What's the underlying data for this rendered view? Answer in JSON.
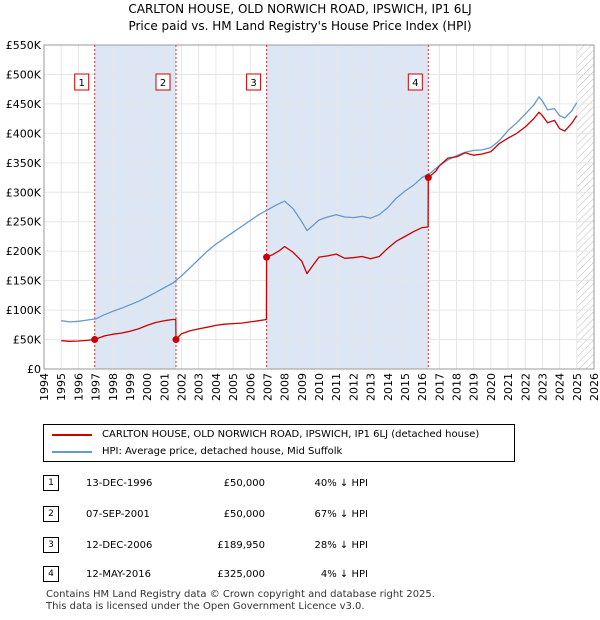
{
  "title_line1": "CARLTON HOUSE, OLD NORWICH ROAD, IPSWICH, IP1 6LJ",
  "title_line2": "Price paid vs. HM Land Registry's House Price Index (HPI)",
  "legend": {
    "property": "CARLTON HOUSE, OLD NORWICH ROAD, IPSWICH, IP1 6LJ (detached house)",
    "hpi": "HPI: Average price, detached house, Mid Suffolk"
  },
  "colors": {
    "property": "#cc0000",
    "hpi": "#6699cc",
    "shade": "#dde6f4",
    "marker_line": "#dd3333"
  },
  "sales": [
    {
      "num": "1",
      "date": "13-DEC-1996",
      "price": "£50,000",
      "hpi": "40% ↓ HPI"
    },
    {
      "num": "2",
      "date": "07-SEP-2001",
      "price": "£50,000",
      "hpi": "67% ↓ HPI"
    },
    {
      "num": "3",
      "date": "12-DEC-2006",
      "price": "£189,950",
      "hpi": "28% ↓ HPI"
    },
    {
      "num": "4",
      "date": "12-MAY-2016",
      "price": "£325,000",
      "hpi": "4% ↓ HPI"
    }
  ],
  "footer": {
    "line1": "Contains HM Land Registry data © Crown copyright and database right 2025.",
    "line2": "This data is licensed under the Open Government Licence v3.0."
  },
  "chart_data": {
    "type": "line",
    "title": "CARLTON HOUSE, OLD NORWICH ROAD, IPSWICH, IP1 6LJ — Price paid vs. HM Land Registry's House Price Index (HPI)",
    "xlabel": "",
    "ylabel": "",
    "xlim": [
      1994,
      2026
    ],
    "ylim": [
      0,
      550000
    ],
    "x_ticks": [
      "1994",
      "1995",
      "1996",
      "1997",
      "1998",
      "1999",
      "2000",
      "2001",
      "2002",
      "2003",
      "2004",
      "2005",
      "2006",
      "2007",
      "2008",
      "2009",
      "2010",
      "2011",
      "2012",
      "2013",
      "2014",
      "2015",
      "2016",
      "2017",
      "2018",
      "2019",
      "2020",
      "2021",
      "2022",
      "2023",
      "2024",
      "2025",
      "2026"
    ],
    "y_ticks": [
      {
        "value": 0,
        "label": "£0"
      },
      {
        "value": 50000,
        "label": "£50K"
      },
      {
        "value": 100000,
        "label": "£100K"
      },
      {
        "value": 150000,
        "label": "£150K"
      },
      {
        "value": 200000,
        "label": "£200K"
      },
      {
        "value": 250000,
        "label": "£250K"
      },
      {
        "value": 300000,
        "label": "£300K"
      },
      {
        "value": 350000,
        "label": "£350K"
      },
      {
        "value": 400000,
        "label": "£400K"
      },
      {
        "value": 450000,
        "label": "£450K"
      },
      {
        "value": 500000,
        "label": "£500K"
      },
      {
        "value": 550000,
        "label": "£550K"
      }
    ],
    "shaded_ranges": [
      [
        1996.95,
        2001.68
      ],
      [
        2006.95,
        2016.36
      ]
    ],
    "hatched_after": 2025.0,
    "sale_markers": [
      {
        "label": "1",
        "x": 1996.95,
        "y": 50000
      },
      {
        "label": "2",
        "x": 2001.68,
        "y": 50000
      },
      {
        "label": "3",
        "x": 2006.95,
        "y": 189950
      },
      {
        "label": "4",
        "x": 2016.36,
        "y": 325000
      }
    ],
    "series": [
      {
        "name": "CARLTON HOUSE, OLD NORWICH ROAD, IPSWICH, IP1 6LJ (detached house)",
        "x": [
          1995.0,
          1995.5,
          1996.0,
          1996.5,
          1996.95,
          1997.5,
          1998.0,
          1998.5,
          1999.0,
          1999.5,
          2000.0,
          2000.5,
          2001.0,
          2001.5,
          2001.67,
          2001.68,
          2002.0,
          2002.5,
          2003.0,
          2003.5,
          2004.0,
          2004.5,
          2005.0,
          2005.5,
          2006.0,
          2006.5,
          2006.94,
          2006.95,
          2007.3,
          2007.7,
          2008.0,
          2008.5,
          2009.0,
          2009.3,
          2009.7,
          2010.0,
          2010.5,
          2011.0,
          2011.5,
          2012.0,
          2012.5,
          2013.0,
          2013.5,
          2014.0,
          2014.5,
          2015.0,
          2015.5,
          2016.0,
          2016.35,
          2016.36,
          2016.8,
          2017.0,
          2017.5,
          2018.0,
          2018.5,
          2019.0,
          2019.5,
          2020.0,
          2020.5,
          2021.0,
          2021.5,
          2022.0,
          2022.5,
          2022.8,
          2023.0,
          2023.3,
          2023.7,
          2024.0,
          2024.3,
          2024.7,
          2025.0
        ],
        "values": [
          48000,
          47000,
          47500,
          48500,
          50000,
          56000,
          59000,
          61000,
          64000,
          68000,
          74000,
          79000,
          82000,
          84000,
          84000,
          50000,
          60000,
          65000,
          68000,
          71000,
          74000,
          76000,
          77000,
          78000,
          80000,
          82000,
          84000,
          189950,
          194000,
          201000,
          208000,
          198000,
          183000,
          162000,
          178000,
          190000,
          192000,
          195000,
          188000,
          189000,
          191000,
          187000,
          191000,
          205000,
          217000,
          225000,
          233000,
          240000,
          241000,
          325000,
          336000,
          345000,
          358000,
          360000,
          367000,
          363000,
          365000,
          369000,
          383000,
          392000,
          400000,
          411000,
          425000,
          436000,
          430000,
          418000,
          422000,
          408000,
          404000,
          417000,
          430000
        ]
      },
      {
        "name": "HPI: Average price, detached house, Mid Suffolk",
        "x": [
          1995.0,
          1995.5,
          1996.0,
          1996.5,
          1997.0,
          1997.5,
          1998.0,
          1998.5,
          1999.0,
          1999.5,
          2000.0,
          2000.5,
          2001.0,
          2001.5,
          2002.0,
          2002.5,
          2003.0,
          2003.5,
          2004.0,
          2004.5,
          2005.0,
          2005.5,
          2006.0,
          2006.5,
          2007.0,
          2007.5,
          2008.0,
          2008.5,
          2009.0,
          2009.3,
          2009.7,
          2010.0,
          2010.5,
          2011.0,
          2011.5,
          2012.0,
          2012.5,
          2013.0,
          2013.5,
          2014.0,
          2014.5,
          2015.0,
          2015.5,
          2016.0,
          2016.5,
          2017.0,
          2017.5,
          2018.0,
          2018.5,
          2019.0,
          2019.5,
          2020.0,
          2020.5,
          2021.0,
          2021.5,
          2022.0,
          2022.5,
          2022.8,
          2023.0,
          2023.3,
          2023.7,
          2024.0,
          2024.3,
          2024.7,
          2025.0
        ],
        "values": [
          82000,
          80000,
          81000,
          83000,
          85000,
          92000,
          98000,
          103000,
          109000,
          115000,
          122000,
          130000,
          138000,
          146000,
          158000,
          172000,
          186000,
          200000,
          212000,
          222000,
          232000,
          242000,
          252000,
          262000,
          270000,
          278000,
          285000,
          272000,
          250000,
          235000,
          245000,
          253000,
          258000,
          262000,
          258000,
          257000,
          259000,
          256000,
          262000,
          274000,
          290000,
          302000,
          312000,
          325000,
          333000,
          345000,
          355000,
          362000,
          368000,
          371000,
          372000,
          376000,
          388000,
          405000,
          418000,
          433000,
          448000,
          462000,
          455000,
          440000,
          442000,
          430000,
          426000,
          438000,
          452000
        ]
      }
    ]
  }
}
